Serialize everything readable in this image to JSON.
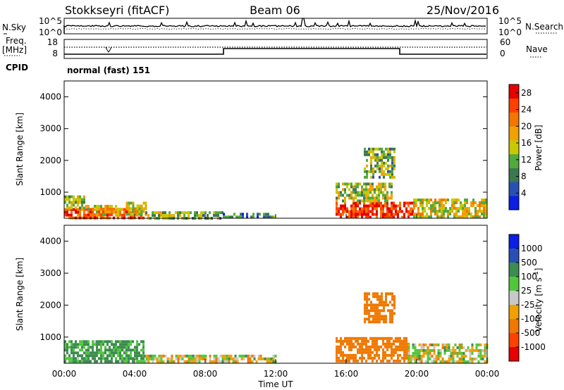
{
  "header": {
    "title": "Stokkseyri (fitACF)",
    "beam": "Beam 06",
    "date": "25/Nov/2016"
  },
  "strip_nsky": {
    "label_left": "N.Sky",
    "label_right": "N.Search",
    "left_ticks": [
      "10^5",
      "10^0"
    ],
    "right_ticks": [
      "10^5",
      "10^0"
    ]
  },
  "strip_freq": {
    "label_left_1": "Freq.",
    "label_left_2": "[MHz]",
    "label_right": "Nave",
    "left_ticks": [
      "18",
      "8"
    ],
    "right_ticks": [
      "60",
      "0"
    ]
  },
  "cpid": {
    "label": "CPID",
    "value": "normal (fast) 151"
  },
  "colors": {
    "power_scale": [
      "#0a1ee6",
      "#2850b4",
      "#3c7850",
      "#50aa3c",
      "#c8c800",
      "#f0a000",
      "#f07800",
      "#ff4000",
      "#e60000"
    ],
    "velocity_scale": [
      "#e60000",
      "#ff4000",
      "#f07800",
      "#f0a000",
      "#c8c8c8",
      "#50c83c",
      "#3c8c50",
      "#2850b4",
      "#0a1ee6"
    ]
  },
  "chart_data": [
    {
      "type": "heatmap",
      "name": "power",
      "xlabel": "",
      "ylabel": "Slant Range [km]",
      "y_ticks": [
        "1000",
        "2000",
        "3000",
        "4000"
      ],
      "ylim": [
        180,
        4500
      ],
      "x_ticks": [
        "00:00",
        "04:00",
        "08:00",
        "12:00",
        "16:00",
        "20:00",
        "00:00"
      ],
      "xlim_hours": [
        0,
        24
      ],
      "colorbar_label": "Power [dB]",
      "colorbar_ticks": [
        "4",
        "8",
        "12",
        "16",
        "20",
        "24",
        "28"
      ],
      "colorbar_range": [
        0,
        30
      ],
      "regions": [
        {
          "t": [
            0.0,
            4.5
          ],
          "r": [
            200,
            500
          ],
          "value": 24
        },
        {
          "t": [
            0.0,
            1.2
          ],
          "r": [
            500,
            900
          ],
          "value": 14
        },
        {
          "t": [
            1.2,
            3.2
          ],
          "r": [
            300,
            600
          ],
          "value": 18
        },
        {
          "t": [
            3.5,
            4.6
          ],
          "r": [
            300,
            700
          ],
          "value": 16
        },
        {
          "t": [
            4.6,
            9.0
          ],
          "r": [
            200,
            400
          ],
          "value": 12
        },
        {
          "t": [
            9.0,
            12.0
          ],
          "r": [
            200,
            350
          ],
          "value": 8
        },
        {
          "t": [
            15.4,
            19.8
          ],
          "r": [
            200,
            700
          ],
          "value": 26
        },
        {
          "t": [
            15.4,
            18.6
          ],
          "r": [
            700,
            1300
          ],
          "value": 14
        },
        {
          "t": [
            17.0,
            18.8
          ],
          "r": [
            1500,
            2400
          ],
          "value": 12
        },
        {
          "t": [
            19.8,
            24.0
          ],
          "r": [
            200,
            800
          ],
          "value": 16
        }
      ]
    },
    {
      "type": "heatmap",
      "name": "velocity",
      "xlabel": "Time UT",
      "ylabel": "Slant Range [km]",
      "y_ticks": [
        "1000",
        "2000",
        "3000",
        "4000"
      ],
      "ylim": [
        180,
        4500
      ],
      "x_ticks": [
        "00:00",
        "04:00",
        "08:00",
        "12:00",
        "16:00",
        "20:00",
        "00:00"
      ],
      "xlim_hours": [
        0,
        24
      ],
      "colorbar_label": "Velocity [m s^-1]",
      "colorbar_ticks": [
        "1000",
        "500",
        "100",
        "25",
        "-25",
        "-100",
        "-500",
        "-1000"
      ],
      "regions": [
        {
          "t": [
            0.0,
            4.5
          ],
          "r": [
            200,
            900
          ],
          "value": 150
        },
        {
          "t": [
            4.5,
            12.0
          ],
          "r": [
            200,
            450
          ],
          "value": 0
        },
        {
          "t": [
            15.4,
            19.5
          ],
          "r": [
            250,
            1000
          ],
          "value": -300
        },
        {
          "t": [
            17.0,
            18.8
          ],
          "r": [
            1500,
            2400
          ],
          "value": -300
        },
        {
          "t": [
            19.5,
            24.0
          ],
          "r": [
            200,
            800
          ],
          "value": 0
        }
      ]
    }
  ]
}
